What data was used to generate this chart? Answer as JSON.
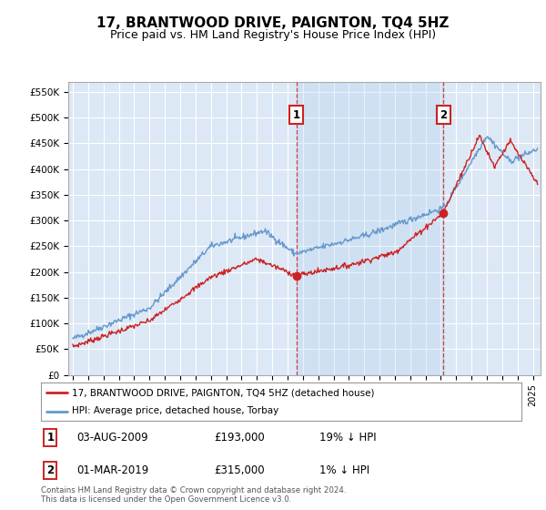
{
  "title": "17, BRANTWOOD DRIVE, PAIGNTON, TQ4 5HZ",
  "subtitle": "Price paid vs. HM Land Registry's House Price Index (HPI)",
  "ylabel_ticks": [
    "£0",
    "£50K",
    "£100K",
    "£150K",
    "£200K",
    "£250K",
    "£300K",
    "£350K",
    "£400K",
    "£450K",
    "£500K",
    "£550K"
  ],
  "ylim": [
    0,
    570000
  ],
  "xlim_start": 1994.7,
  "xlim_end": 2025.5,
  "background_color": "#dce8f5",
  "plot_bg_color": "#dce8f5",
  "grid_color": "#ffffff",
  "hpi_color": "#6699cc",
  "price_color": "#cc2222",
  "sale1_x": 2009.583,
  "sale1_y": 193000,
  "sale2_x": 2019.167,
  "sale2_y": 315000,
  "legend_label1": "17, BRANTWOOD DRIVE, PAIGNTON, TQ4 5HZ (detached house)",
  "legend_label2": "HPI: Average price, detached house, Torbay",
  "annotation1_date": "03-AUG-2009",
  "annotation1_price": "£193,000",
  "annotation1_hpi": "19% ↓ HPI",
  "annotation2_date": "01-MAR-2019",
  "annotation2_price": "£315,000",
  "annotation2_hpi": "1% ↓ HPI",
  "footer": "Contains HM Land Registry data © Crown copyright and database right 2024.\nThis data is licensed under the Open Government Licence v3.0.",
  "title_fontsize": 11,
  "subtitle_fontsize": 9
}
